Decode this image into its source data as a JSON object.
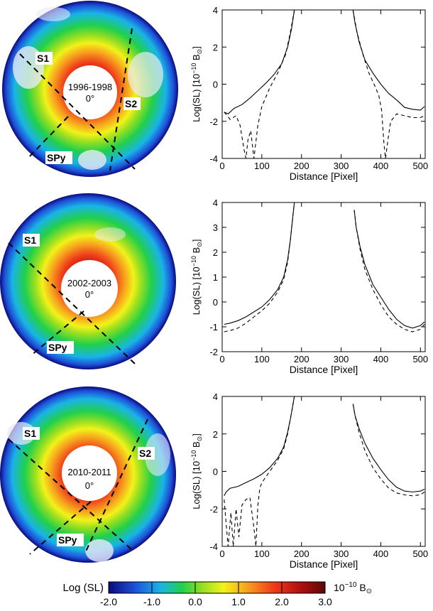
{
  "figure": {
    "panels": [
      {
        "image": {
          "period": "1996-1998",
          "angle": "0°",
          "cuts": [
            "S1",
            "S2",
            "SPy"
          ]
        }
      },
      {
        "image": {
          "period": "2002-2003",
          "angle": "0°",
          "cuts": [
            "S1",
            "SPy"
          ]
        }
      },
      {
        "image": {
          "period": "2010-2011",
          "angle": "0°",
          "cuts": [
            "S1",
            "S2",
            "SPy"
          ]
        }
      }
    ],
    "colorbar": {
      "label": "Log (SL)",
      "unit_base": "10",
      "unit_exp": "−10",
      "unit_suffix": " B",
      "unit_symbol": "⊙",
      "min": -2.0,
      "max": 3.0,
      "ticks": [
        "-2.0",
        "-1.0",
        "0.0",
        "1.0",
        "2.0",
        "3.0"
      ],
      "colors": [
        "#0a0a7a",
        "#1e4fd8",
        "#19b4e6",
        "#22d04a",
        "#9de020",
        "#f2f21a",
        "#f7a11e",
        "#ef3d1b",
        "#b3120f",
        "#5a0707"
      ]
    }
  },
  "chart_data": [
    {
      "type": "line",
      "panel": "1996-1998",
      "xlabel": "Distance [Pixel]",
      "ylabel_prefix": "Log(SL) [10",
      "ylabel_exp": "−10",
      "ylabel_suffix": " B",
      "ylabel_symbol": "⊙",
      "ylabel_close": "]",
      "xlim": [
        0,
        512
      ],
      "ylim": [
        -4,
        4
      ],
      "xticks": [
        0,
        100,
        200,
        300,
        400,
        500
      ],
      "yticks": [
        -4,
        -2,
        0,
        2,
        4
      ],
      "series": [
        {
          "name": "solid",
          "style": "solid",
          "x": [
            5,
            15,
            30,
            50,
            70,
            90,
            110,
            130,
            150,
            165,
            175,
            182
          ],
          "y": [
            -1.5,
            -1.6,
            -1.3,
            -1.1,
            -0.75,
            -0.35,
            0.05,
            0.5,
            1.1,
            2.0,
            3.0,
            4.0
          ]
        },
        {
          "name": "solid",
          "style": "solid",
          "x": [
            330,
            335,
            345,
            360,
            380,
            400,
            420,
            440,
            460,
            480,
            500,
            510
          ],
          "y": [
            4.0,
            3.3,
            2.3,
            1.3,
            0.6,
            0.0,
            -0.5,
            -0.85,
            -1.25,
            -1.35,
            -1.4,
            -1.2
          ]
        },
        {
          "name": "dashed",
          "style": "dashed",
          "x": [
            5,
            20,
            35,
            45,
            55,
            60,
            65,
            72,
            80,
            90,
            100,
            120,
            140,
            160,
            172,
            182
          ],
          "y": [
            -1.5,
            -1.9,
            -1.7,
            -2.2,
            -3.5,
            -4.0,
            -3.0,
            -2.5,
            -4.0,
            -2.2,
            -1.2,
            -0.2,
            0.6,
            1.6,
            2.8,
            4.0
          ]
        },
        {
          "name": "dashed",
          "style": "dashed",
          "x": [
            330,
            340,
            355,
            370,
            385,
            395,
            402,
            408,
            412,
            418,
            425,
            440,
            460,
            480,
            500,
            510
          ],
          "y": [
            4.0,
            2.8,
            1.6,
            0.6,
            -0.1,
            -0.6,
            -1.4,
            -3.2,
            -4.0,
            -3.0,
            -2.0,
            -1.6,
            -1.7,
            -1.8,
            -1.8,
            -1.7
          ]
        }
      ]
    },
    {
      "type": "line",
      "panel": "2002-2003",
      "xlabel": "Distance [Pixel]",
      "ylabel_prefix": "Log(SL) [10",
      "ylabel_exp": "−10",
      "ylabel_suffix": " B",
      "ylabel_symbol": "⊙",
      "ylabel_close": "]",
      "xlim": [
        0,
        512
      ],
      "ylim": [
        -2,
        4
      ],
      "xticks": [
        0,
        100,
        200,
        300,
        400,
        500
      ],
      "yticks": [
        -2,
        -1,
        0,
        1,
        2,
        3,
        4
      ],
      "series": [
        {
          "name": "solid",
          "style": "solid",
          "x": [
            5,
            20,
            40,
            60,
            80,
            100,
            120,
            140,
            155,
            165,
            172,
            178,
            182
          ],
          "y": [
            -0.9,
            -0.85,
            -0.75,
            -0.6,
            -0.4,
            -0.2,
            0.1,
            0.5,
            1.0,
            1.7,
            2.5,
            3.4,
            4.0
          ]
        },
        {
          "name": "solid",
          "style": "solid",
          "x": [
            333,
            338,
            348,
            360,
            380,
            400,
            420,
            440,
            460,
            480,
            500,
            510
          ],
          "y": [
            3.7,
            3.0,
            2.2,
            1.5,
            0.7,
            0.2,
            -0.3,
            -0.7,
            -0.95,
            -1.05,
            -0.95,
            -0.8
          ]
        },
        {
          "name": "dashed",
          "style": "dashed",
          "x": [
            5,
            20,
            40,
            60,
            80,
            100,
            120,
            140,
            155,
            165,
            172,
            178,
            182
          ],
          "y": [
            -1.2,
            -1.15,
            -1.05,
            -0.85,
            -0.6,
            -0.35,
            -0.05,
            0.4,
            0.9,
            1.6,
            2.5,
            3.4,
            4.0
          ]
        },
        {
          "name": "dashed",
          "style": "dashed",
          "x": [
            333,
            338,
            348,
            360,
            380,
            400,
            420,
            440,
            460,
            480,
            500,
            510
          ],
          "y": [
            3.7,
            3.0,
            2.1,
            1.3,
            0.5,
            -0.1,
            -0.6,
            -0.9,
            -1.1,
            -1.2,
            -1.1,
            -0.9
          ]
        }
      ]
    },
    {
      "type": "line",
      "panel": "2010-2011",
      "xlabel": "Distance [Pixel]",
      "ylabel_prefix": "Log(SL) [10",
      "ylabel_exp": "−10",
      "ylabel_suffix": " B",
      "ylabel_symbol": "⊙",
      "ylabel_close": "]",
      "xlim": [
        0,
        512
      ],
      "ylim": [
        -4,
        4
      ],
      "xticks": [
        0,
        100,
        200,
        300,
        400,
        500
      ],
      "yticks": [
        -4,
        -2,
        0,
        2,
        4
      ],
      "series": [
        {
          "name": "solid",
          "style": "solid",
          "x": [
            5,
            10,
            20,
            40,
            60,
            80,
            100,
            120,
            140,
            155,
            165,
            172,
            178,
            182
          ],
          "y": [
            -1.3,
            -1.1,
            -0.9,
            -0.8,
            -0.6,
            -0.4,
            -0.15,
            0.2,
            0.7,
            1.3,
            2.1,
            2.8,
            3.5,
            4.0
          ]
        },
        {
          "name": "solid",
          "style": "solid",
          "x": [
            330,
            335,
            345,
            360,
            380,
            400,
            420,
            440,
            460,
            480,
            500,
            510
          ],
          "y": [
            3.6,
            3.0,
            2.3,
            1.5,
            0.7,
            0.1,
            -0.45,
            -0.85,
            -1.05,
            -1.1,
            -1.05,
            -0.95
          ]
        },
        {
          "name": "dashed",
          "style": "dashed",
          "x": [
            5,
            10,
            15,
            22,
            28,
            35,
            42,
            50,
            60,
            70,
            80,
            85,
            90,
            95,
            100,
            120,
            140,
            155,
            165,
            172,
            178,
            182
          ],
          "y": [
            -1.5,
            -2.8,
            -4.0,
            -2.2,
            -4.0,
            -2.0,
            -3.5,
            -1.8,
            -1.5,
            -1.4,
            -3.0,
            -4.0,
            -1.8,
            -0.9,
            -0.6,
            0.0,
            0.6,
            1.2,
            2.0,
            2.8,
            3.5,
            4.0
          ]
        },
        {
          "name": "dashed",
          "style": "dashed",
          "x": [
            330,
            335,
            345,
            360,
            380,
            400,
            420,
            440,
            460,
            480,
            500,
            510
          ],
          "y": [
            3.6,
            3.0,
            2.1,
            1.1,
            0.2,
            -0.4,
            -0.9,
            -1.15,
            -1.25,
            -1.3,
            -1.25,
            -1.1
          ]
        }
      ]
    }
  ]
}
